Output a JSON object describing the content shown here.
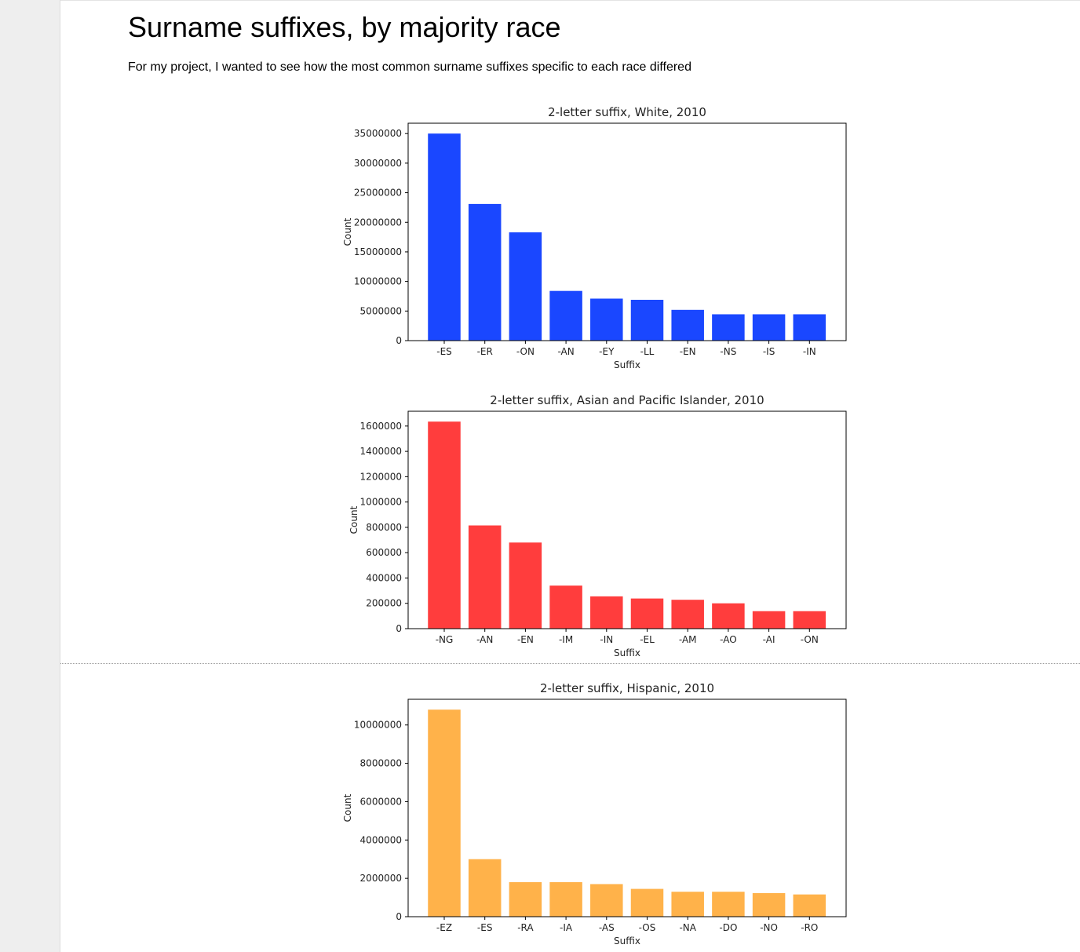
{
  "document": {
    "title": "Surname suffixes, by majority race",
    "intro": "For my project, I wanted to see how the most common surname suffixes specific to each race differed"
  },
  "chart_data": [
    {
      "type": "bar",
      "title": "2-letter suffix, White, 2010",
      "xlabel": "Suffix",
      "ylabel": "Count",
      "color": "#1a47ff",
      "categories": [
        "-ES",
        "-ER",
        "-ON",
        "-AN",
        "-EY",
        "-LL",
        "-EN",
        "-NS",
        "-IS",
        "-IN"
      ],
      "values": [
        35000000,
        23100000,
        18300000,
        8400000,
        7100000,
        6900000,
        5200000,
        4450000,
        4450000,
        4450000
      ],
      "yticks": [
        0,
        5000000,
        10000000,
        15000000,
        20000000,
        25000000,
        30000000,
        35000000
      ],
      "ytick_labels": [
        "0",
        "5000000",
        "10000000",
        "15000000",
        "20000000",
        "25000000",
        "30000000",
        "35000000"
      ],
      "ylim": [
        0,
        36750000
      ]
    },
    {
      "type": "bar",
      "title": "2-letter suffix, Asian and Pacific Islander, 2010",
      "xlabel": "Suffix",
      "ylabel": "Count",
      "color": "#ff3d3d",
      "categories": [
        "-NG",
        "-AN",
        "-EN",
        "-IM",
        "-IN",
        "-EL",
        "-AM",
        "-AO",
        "-AI",
        "-ON"
      ],
      "values": [
        1635000,
        815000,
        680000,
        340000,
        255000,
        238000,
        228000,
        200000,
        138000,
        138000
      ],
      "yticks": [
        0,
        200000,
        400000,
        600000,
        800000,
        1000000,
        1200000,
        1400000,
        1600000
      ],
      "ytick_labels": [
        "0",
        "200000",
        "400000",
        "600000",
        "800000",
        "1000000",
        "1200000",
        "1400000",
        "1600000"
      ],
      "ylim": [
        0,
        1716750
      ]
    },
    {
      "type": "bar",
      "title": "2-letter suffix, Hispanic, 2010",
      "xlabel": "Suffix",
      "ylabel": "Count",
      "color": "#ffb24a",
      "categories": [
        "-EZ",
        "-ES",
        "-RA",
        "-IA",
        "-AS",
        "-OS",
        "-NA",
        "-DO",
        "-NO",
        "-RO"
      ],
      "values": [
        10800000,
        3000000,
        1800000,
        1800000,
        1700000,
        1450000,
        1300000,
        1300000,
        1230000,
        1160000
      ],
      "yticks": [
        0,
        2000000,
        4000000,
        6000000,
        8000000,
        10000000
      ],
      "ytick_labels": [
        "0",
        "2000000",
        "4000000",
        "6000000",
        "8000000",
        "10000000"
      ],
      "ylim": [
        0,
        11340000
      ]
    }
  ]
}
